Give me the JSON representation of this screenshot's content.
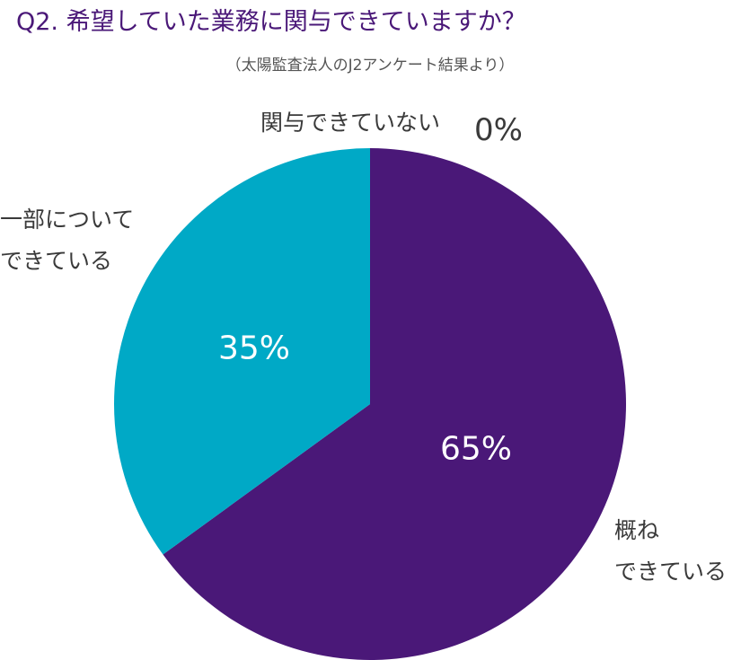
{
  "chart_data": {
    "type": "pie",
    "title": "Q2. 希望していた業務に関与できていますか？",
    "subtitle": "（太陽監査法人のJ2アンケート結果より）",
    "categories": [
      "概ね\nできている",
      "一部について\nできている",
      "関与できていない"
    ],
    "values": [
      65,
      35,
      0
    ],
    "value_labels": [
      "65%",
      "35%",
      "0%"
    ],
    "colors": [
      "#4a1878",
      "#00a9c6",
      "#888888"
    ]
  }
}
